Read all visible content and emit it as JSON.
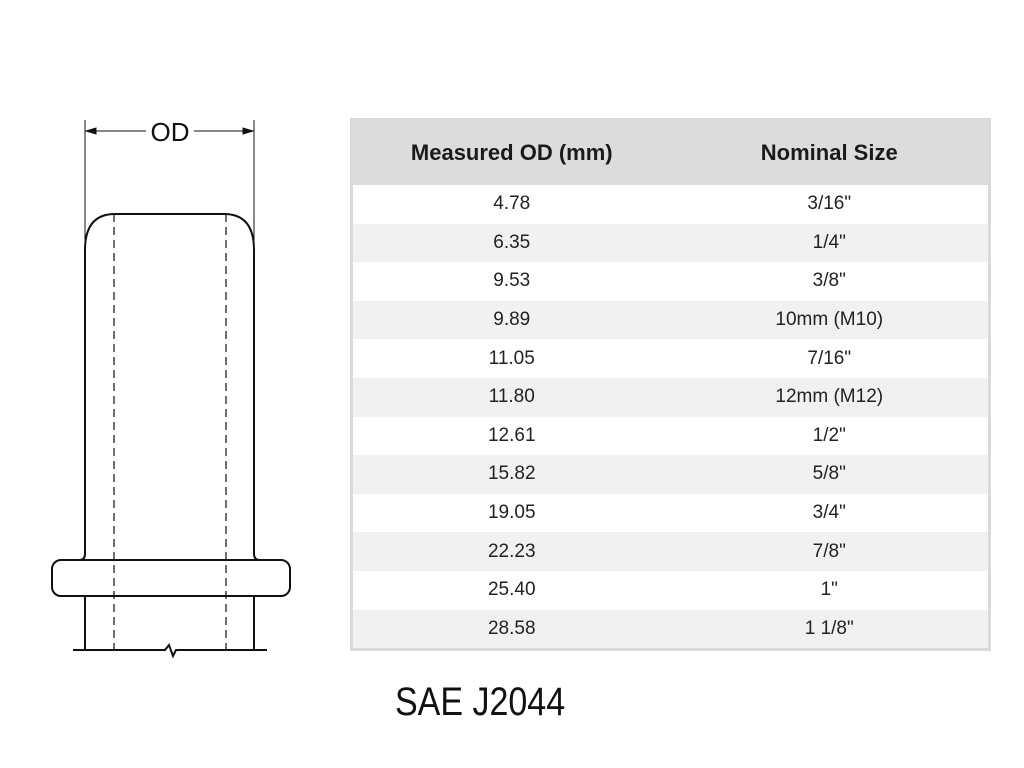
{
  "drawing": {
    "dimension_label": "OD"
  },
  "table": {
    "headers": [
      "Measured OD (mm)",
      "Nominal Size"
    ],
    "rows": [
      [
        "4.78",
        "3/16\""
      ],
      [
        "6.35",
        "1/4\""
      ],
      [
        "9.53",
        "3/8\""
      ],
      [
        "9.89",
        "10mm (M10)"
      ],
      [
        "11.05",
        "7/16\""
      ],
      [
        "11.80",
        "12mm (M12)"
      ],
      [
        "12.61",
        "1/2\""
      ],
      [
        "15.82",
        "5/8\""
      ],
      [
        "19.05",
        "3/4\""
      ],
      [
        "22.23",
        "7/8\""
      ],
      [
        "25.40",
        "1\""
      ],
      [
        "28.58",
        "1 1/8\""
      ]
    ]
  },
  "caption": "SAE J2044"
}
